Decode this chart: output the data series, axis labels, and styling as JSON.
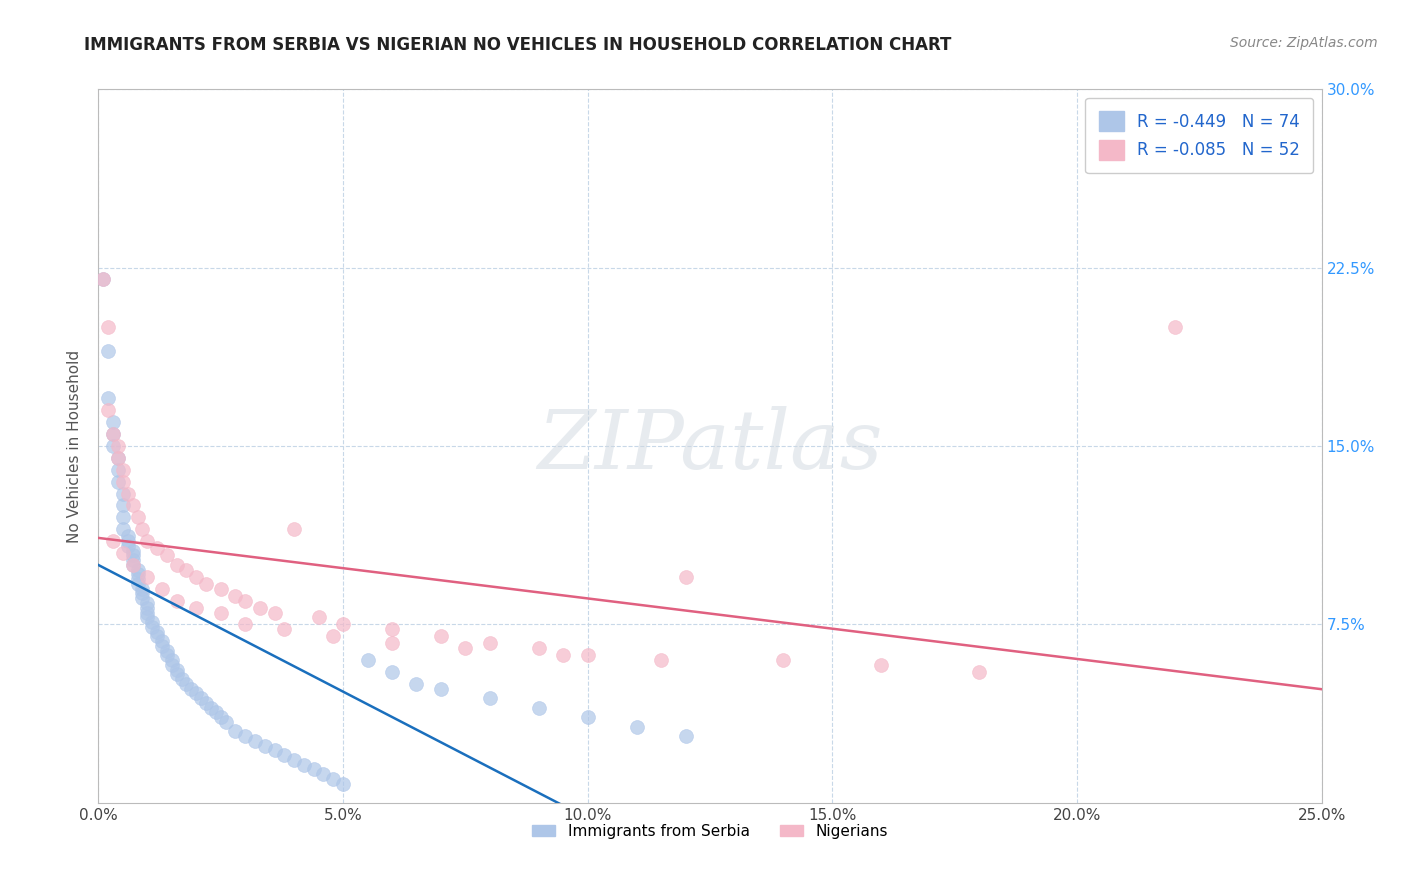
{
  "title": "IMMIGRANTS FROM SERBIA VS NIGERIAN NO VEHICLES IN HOUSEHOLD CORRELATION CHART",
  "source": "Source: ZipAtlas.com",
  "ylabel": "No Vehicles in Household",
  "xlim": [
    0.0,
    0.25
  ],
  "ylim": [
    0.0,
    0.3
  ],
  "xticks": [
    0.0,
    0.05,
    0.1,
    0.15,
    0.2,
    0.25
  ],
  "yticks_right": [
    0.075,
    0.15,
    0.225,
    0.3
  ],
  "ytick_labels_right": [
    "7.5%",
    "15.0%",
    "22.5%",
    "30.0%"
  ],
  "xtick_labels": [
    "0.0%",
    "5.0%",
    "10.0%",
    "15.0%",
    "20.0%",
    "25.0%"
  ],
  "legend_serbia": "R = -0.449   N = 74",
  "legend_nigerian": "R = -0.085   N = 52",
  "serbia_color": "#aec6e8",
  "nigerian_color": "#f4b8c8",
  "serbia_line_color": "#1a6fbd",
  "nigerian_line_color": "#e06080",
  "watermark": "ZIPatlas",
  "background_color": "#ffffff",
  "grid_color": "#c8d8e8",
  "serbia_x": [
    0.001,
    0.002,
    0.002,
    0.003,
    0.003,
    0.003,
    0.004,
    0.004,
    0.004,
    0.005,
    0.005,
    0.005,
    0.005,
    0.006,
    0.006,
    0.006,
    0.007,
    0.007,
    0.007,
    0.007,
    0.008,
    0.008,
    0.008,
    0.008,
    0.009,
    0.009,
    0.009,
    0.01,
    0.01,
    0.01,
    0.01,
    0.011,
    0.011,
    0.012,
    0.012,
    0.013,
    0.013,
    0.014,
    0.014,
    0.015,
    0.015,
    0.016,
    0.016,
    0.017,
    0.018,
    0.019,
    0.02,
    0.021,
    0.022,
    0.023,
    0.024,
    0.025,
    0.026,
    0.028,
    0.03,
    0.032,
    0.034,
    0.036,
    0.038,
    0.04,
    0.042,
    0.044,
    0.046,
    0.048,
    0.05,
    0.055,
    0.06,
    0.065,
    0.07,
    0.08,
    0.09,
    0.1,
    0.11,
    0.12
  ],
  "serbia_y": [
    0.22,
    0.19,
    0.17,
    0.16,
    0.155,
    0.15,
    0.145,
    0.14,
    0.135,
    0.13,
    0.125,
    0.12,
    0.115,
    0.112,
    0.11,
    0.108,
    0.106,
    0.104,
    0.102,
    0.1,
    0.098,
    0.096,
    0.094,
    0.092,
    0.09,
    0.088,
    0.086,
    0.084,
    0.082,
    0.08,
    0.078,
    0.076,
    0.074,
    0.072,
    0.07,
    0.068,
    0.066,
    0.064,
    0.062,
    0.06,
    0.058,
    0.056,
    0.054,
    0.052,
    0.05,
    0.048,
    0.046,
    0.044,
    0.042,
    0.04,
    0.038,
    0.036,
    0.034,
    0.03,
    0.028,
    0.026,
    0.024,
    0.022,
    0.02,
    0.018,
    0.016,
    0.014,
    0.012,
    0.01,
    0.008,
    0.06,
    0.055,
    0.05,
    0.048,
    0.044,
    0.04,
    0.036,
    0.032,
    0.028
  ],
  "nigerian_x": [
    0.001,
    0.002,
    0.002,
    0.003,
    0.004,
    0.004,
    0.005,
    0.005,
    0.006,
    0.007,
    0.008,
    0.009,
    0.01,
    0.012,
    0.014,
    0.016,
    0.018,
    0.02,
    0.022,
    0.025,
    0.028,
    0.03,
    0.033,
    0.036,
    0.04,
    0.045,
    0.05,
    0.06,
    0.07,
    0.08,
    0.09,
    0.1,
    0.12,
    0.14,
    0.16,
    0.18,
    0.003,
    0.005,
    0.007,
    0.01,
    0.013,
    0.016,
    0.02,
    0.025,
    0.03,
    0.038,
    0.048,
    0.06,
    0.075,
    0.095,
    0.115,
    0.22
  ],
  "nigerian_y": [
    0.22,
    0.2,
    0.165,
    0.155,
    0.15,
    0.145,
    0.14,
    0.135,
    0.13,
    0.125,
    0.12,
    0.115,
    0.11,
    0.107,
    0.104,
    0.1,
    0.098,
    0.095,
    0.092,
    0.09,
    0.087,
    0.085,
    0.082,
    0.08,
    0.115,
    0.078,
    0.075,
    0.073,
    0.07,
    0.067,
    0.065,
    0.062,
    0.095,
    0.06,
    0.058,
    0.055,
    0.11,
    0.105,
    0.1,
    0.095,
    0.09,
    0.085,
    0.082,
    0.08,
    0.075,
    0.073,
    0.07,
    0.067,
    0.065,
    0.062,
    0.06,
    0.2
  ]
}
